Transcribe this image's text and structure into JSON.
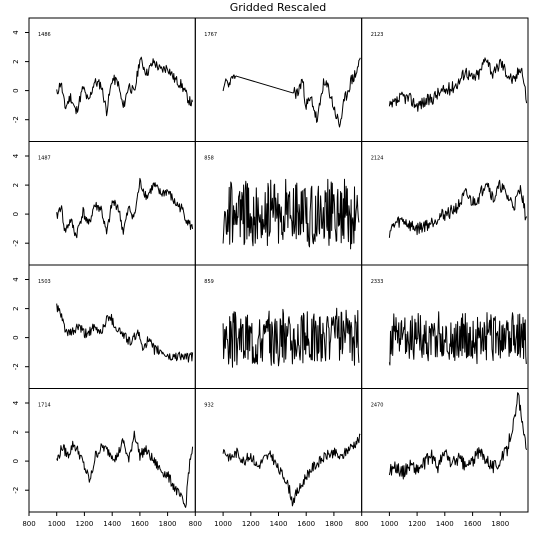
{
  "chart_data": {
    "type": "line",
    "title": "Gridded Rescaled",
    "layout": {
      "rows": 4,
      "cols": 3
    },
    "xlim": [
      800,
      2000
    ],
    "ylim": [
      -3.5,
      5
    ],
    "x_ticks": [
      800,
      1000,
      1200,
      1400,
      1600,
      1800
    ],
    "x_tick_labels": [
      "800",
      "1000",
      "1200",
      "1400",
      "1600",
      "1800"
    ],
    "y_ticks": [
      -2,
      0,
      2,
      4
    ],
    "y_tick_labels": [
      "-2",
      "0",
      "2",
      "4"
    ],
    "panels": [
      {
        "label": "1486",
        "range": [
          1000,
          1980
        ],
        "kind": "smooth",
        "seed": 11,
        "knots": [
          [
            1000,
            -0.2
          ],
          [
            1030,
            0.6
          ],
          [
            1060,
            -1.2
          ],
          [
            1100,
            -0.4
          ],
          [
            1140,
            -1.5
          ],
          [
            1190,
            0.2
          ],
          [
            1230,
            -0.8
          ],
          [
            1270,
            0.6
          ],
          [
            1320,
            0.4
          ],
          [
            1360,
            -1.4
          ],
          [
            1400,
            0.8
          ],
          [
            1440,
            0.6
          ],
          [
            1480,
            -1.2
          ],
          [
            1520,
            0.4
          ],
          [
            1560,
            -0.2
          ],
          [
            1600,
            2.2
          ],
          [
            1650,
            1.2
          ],
          [
            1700,
            2.0
          ],
          [
            1750,
            1.4
          ],
          [
            1800,
            1.6
          ],
          [
            1850,
            0.8
          ],
          [
            1900,
            0.4
          ],
          [
            1950,
            -0.6
          ],
          [
            1980,
            -1.0
          ]
        ]
      },
      {
        "label": "1767",
        "range": [
          1000,
          1990
        ],
        "kind": "gap",
        "seed": 23,
        "knots": [
          [
            1000,
            -0.2
          ],
          [
            1020,
            0.8
          ],
          [
            1040,
            0.4
          ],
          [
            1070,
            1.0
          ],
          [
            1100,
            0.8
          ],
          [
            1500,
            0.0
          ],
          [
            1540,
            -0.2
          ],
          [
            1570,
            0.8
          ],
          [
            1600,
            -1.0
          ],
          [
            1640,
            -0.6
          ],
          [
            1680,
            -2.2
          ],
          [
            1720,
            0.4
          ],
          [
            1760,
            0.2
          ],
          [
            1800,
            -1.2
          ],
          [
            1840,
            -2.4
          ],
          [
            1880,
            -0.6
          ],
          [
            1920,
            0.6
          ],
          [
            1960,
            1.2
          ],
          [
            1990,
            2.2
          ]
        ]
      },
      {
        "label": "2123",
        "range": [
          1000,
          1990
        ],
        "kind": "trend",
        "seed": 37,
        "knots": [
          [
            1000,
            -1.2
          ],
          [
            1050,
            -0.8
          ],
          [
            1100,
            -0.4
          ],
          [
            1150,
            -0.6
          ],
          [
            1200,
            -1.0
          ],
          [
            1250,
            -0.8
          ],
          [
            1300,
            -0.6
          ],
          [
            1350,
            -0.2
          ],
          [
            1400,
            0.0
          ],
          [
            1450,
            0.2
          ],
          [
            1500,
            0.6
          ],
          [
            1550,
            1.4
          ],
          [
            1600,
            0.8
          ],
          [
            1650,
            1.2
          ],
          [
            1700,
            2.4
          ],
          [
            1750,
            1.0
          ],
          [
            1800,
            2.0
          ],
          [
            1850,
            1.2
          ],
          [
            1900,
            0.6
          ],
          [
            1950,
            1.8
          ],
          [
            1990,
            -0.6
          ]
        ]
      },
      {
        "label": "1487",
        "range": [
          1000,
          1980
        ],
        "kind": "smooth",
        "seed": 41,
        "knots": [
          [
            1000,
            -0.2
          ],
          [
            1030,
            0.6
          ],
          [
            1060,
            -1.2
          ],
          [
            1100,
            -0.4
          ],
          [
            1140,
            -1.5
          ],
          [
            1190,
            0.2
          ],
          [
            1230,
            -0.8
          ],
          [
            1270,
            0.6
          ],
          [
            1320,
            0.4
          ],
          [
            1360,
            -1.4
          ],
          [
            1400,
            0.8
          ],
          [
            1440,
            0.6
          ],
          [
            1480,
            -1.2
          ],
          [
            1520,
            0.4
          ],
          [
            1560,
            -0.2
          ],
          [
            1600,
            2.2
          ],
          [
            1650,
            1.2
          ],
          [
            1700,
            2.0
          ],
          [
            1750,
            1.4
          ],
          [
            1800,
            1.6
          ],
          [
            1850,
            0.8
          ],
          [
            1900,
            0.4
          ],
          [
            1950,
            -0.6
          ],
          [
            1980,
            -1.0
          ]
        ]
      },
      {
        "label": "858",
        "range": [
          1000,
          1980
        ],
        "kind": "noise",
        "seed": 53,
        "amp": 2.2,
        "knots": [
          [
            1000,
            0.0
          ],
          [
            1980,
            0.0
          ]
        ]
      },
      {
        "label": "2124",
        "range": [
          1000,
          1990
        ],
        "kind": "trend",
        "seed": 59,
        "knots": [
          [
            1000,
            -1.2
          ],
          [
            1050,
            -0.6
          ],
          [
            1100,
            -0.4
          ],
          [
            1150,
            -0.8
          ],
          [
            1200,
            -1.0
          ],
          [
            1250,
            -0.8
          ],
          [
            1300,
            -0.6
          ],
          [
            1350,
            -0.2
          ],
          [
            1400,
            0.0
          ],
          [
            1450,
            0.2
          ],
          [
            1500,
            0.6
          ],
          [
            1550,
            1.4
          ],
          [
            1600,
            0.8
          ],
          [
            1650,
            1.2
          ],
          [
            1700,
            2.4
          ],
          [
            1750,
            1.0
          ],
          [
            1800,
            2.0
          ],
          [
            1850,
            1.2
          ],
          [
            1900,
            0.6
          ],
          [
            1950,
            1.8
          ],
          [
            1990,
            -0.6
          ]
        ]
      },
      {
        "label": "1503",
        "range": [
          1000,
          1980
        ],
        "kind": "decline",
        "seed": 61,
        "knots": [
          [
            1000,
            2.2
          ],
          [
            1040,
            1.2
          ],
          [
            1080,
            0.2
          ],
          [
            1120,
            0.4
          ],
          [
            1160,
            0.8
          ],
          [
            1200,
            0.2
          ],
          [
            1260,
            0.6
          ],
          [
            1320,
            0.4
          ],
          [
            1380,
            1.6
          ],
          [
            1420,
            0.8
          ],
          [
            1460,
            0.4
          ],
          [
            1500,
            0.0
          ],
          [
            1540,
            -0.4
          ],
          [
            1580,
            0.4
          ],
          [
            1620,
            -0.6
          ],
          [
            1660,
            -0.2
          ],
          [
            1700,
            -0.8
          ],
          [
            1760,
            -1.0
          ],
          [
            1820,
            -1.4
          ],
          [
            1880,
            -1.2
          ],
          [
            1940,
            -1.4
          ],
          [
            1980,
            -1.3
          ]
        ]
      },
      {
        "label": "859",
        "range": [
          1000,
          1980
        ],
        "kind": "noise",
        "seed": 67,
        "amp": 1.8,
        "knots": [
          [
            1000,
            0.0
          ],
          [
            1980,
            0.0
          ]
        ]
      },
      {
        "label": "2333",
        "range": [
          1000,
          1990
        ],
        "kind": "noise",
        "seed": 71,
        "amp": 1.6,
        "knots": [
          [
            1000,
            0.0
          ],
          [
            1990,
            0.0
          ]
        ]
      },
      {
        "label": "1714",
        "range": [
          1000,
          1980
        ],
        "kind": "smooth",
        "seed": 79,
        "knots": [
          [
            1000,
            0.0
          ],
          [
            1040,
            1.0
          ],
          [
            1080,
            0.4
          ],
          [
            1120,
            1.2
          ],
          [
            1160,
            0.6
          ],
          [
            1200,
            -0.4
          ],
          [
            1240,
            -1.4
          ],
          [
            1280,
            0.4
          ],
          [
            1330,
            1.0
          ],
          [
            1380,
            0.6
          ],
          [
            1430,
            0.2
          ],
          [
            1480,
            1.4
          ],
          [
            1520,
            0.0
          ],
          [
            1560,
            2.0
          ],
          [
            1600,
            0.4
          ],
          [
            1640,
            0.8
          ],
          [
            1700,
            0.0
          ],
          [
            1750,
            -0.6
          ],
          [
            1800,
            -1.0
          ],
          [
            1850,
            -1.8
          ],
          [
            1900,
            -2.6
          ],
          [
            1930,
            -3.2
          ],
          [
            1950,
            -0.8
          ],
          [
            1980,
            1.0
          ]
        ]
      },
      {
        "label": "932",
        "range": [
          1000,
          1990
        ],
        "kind": "dip",
        "seed": 83,
        "knots": [
          [
            1000,
            0.8
          ],
          [
            1050,
            0.2
          ],
          [
            1100,
            0.6
          ],
          [
            1150,
            0.0
          ],
          [
            1200,
            0.4
          ],
          [
            1250,
            -0.4
          ],
          [
            1300,
            0.2
          ],
          [
            1350,
            0.4
          ],
          [
            1400,
            -0.6
          ],
          [
            1450,
            -1.2
          ],
          [
            1480,
            -2.0
          ],
          [
            1500,
            -2.8
          ],
          [
            1530,
            -2.2
          ],
          [
            1560,
            -1.8
          ],
          [
            1600,
            -1.0
          ],
          [
            1650,
            -0.4
          ],
          [
            1700,
            0.0
          ],
          [
            1750,
            0.4
          ],
          [
            1800,
            0.6
          ],
          [
            1850,
            0.2
          ],
          [
            1900,
            0.8
          ],
          [
            1950,
            1.2
          ],
          [
            1990,
            1.6
          ]
        ]
      },
      {
        "label": "2470",
        "range": [
          1000,
          1990
        ],
        "kind": "spike",
        "seed": 89,
        "knots": [
          [
            1000,
            -0.6
          ],
          [
            1050,
            -0.4
          ],
          [
            1100,
            -0.8
          ],
          [
            1150,
            -0.2
          ],
          [
            1200,
            -0.6
          ],
          [
            1250,
            -0.2
          ],
          [
            1300,
            0.4
          ],
          [
            1350,
            -0.4
          ],
          [
            1400,
            0.6
          ],
          [
            1450,
            -0.2
          ],
          [
            1500,
            0.2
          ],
          [
            1550,
            -0.4
          ],
          [
            1600,
            0.0
          ],
          [
            1650,
            0.6
          ],
          [
            1700,
            0.2
          ],
          [
            1750,
            -0.4
          ],
          [
            1800,
            0.0
          ],
          [
            1850,
            0.8
          ],
          [
            1880,
            2.2
          ],
          [
            1910,
            3.0
          ],
          [
            1930,
            4.8
          ],
          [
            1950,
            3.0
          ],
          [
            1970,
            1.6
          ],
          [
            1990,
            1.2
          ]
        ]
      }
    ]
  }
}
